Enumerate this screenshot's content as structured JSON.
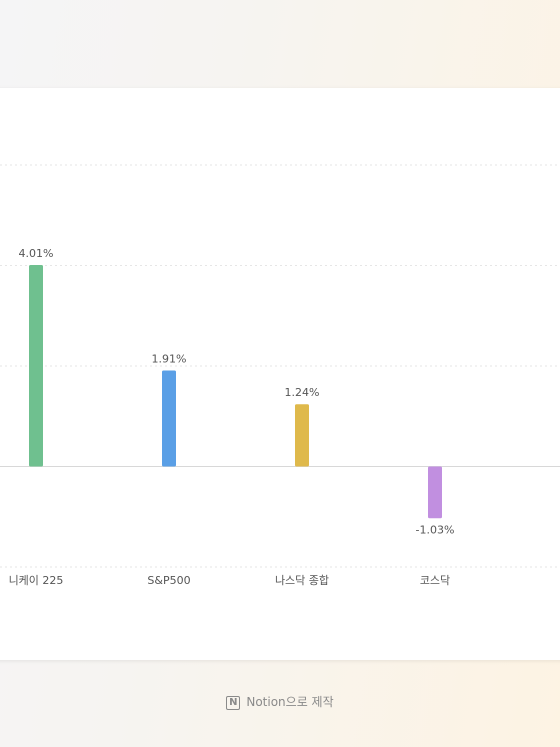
{
  "chart_data": {
    "type": "bar",
    "categories": [
      "니케이 225",
      "S&P500",
      "나스닥 종합",
      "코스닥"
    ],
    "series": [
      {
        "values": [
          4.01,
          1.91,
          1.24,
          -1.03
        ],
        "value_labels": [
          "4.01%",
          "1.91%",
          "1.24%",
          "-1.03%"
        ],
        "colors": [
          "#6fc08f",
          "#5a9fe6",
          "#dfb94b",
          "#c18fe0"
        ]
      }
    ],
    "ylim": [
      -2,
      6
    ],
    "yticks": [
      -2,
      0,
      2,
      4,
      6
    ],
    "grid": true
  },
  "footer": {
    "text": "Notion으로 제작"
  }
}
